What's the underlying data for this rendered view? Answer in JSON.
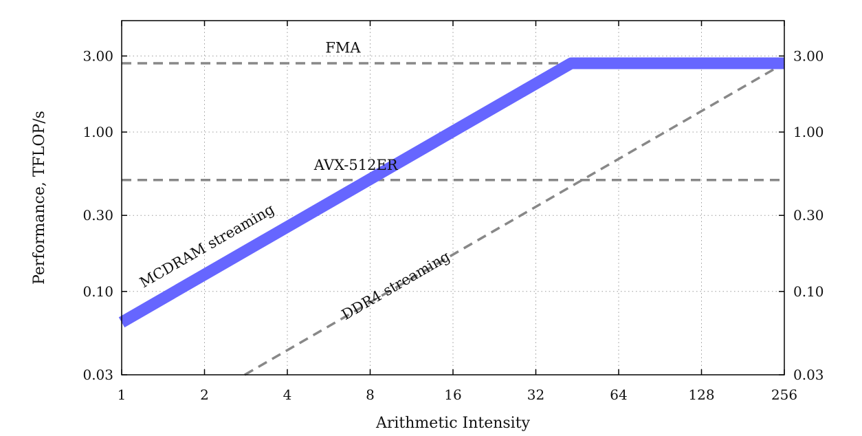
{
  "chart_data": {
    "type": "line",
    "xlabel": "Arithmetic Intensity",
    "ylabel": "Performance, TFLOP/s",
    "x_scale": "log2",
    "y_scale": "log",
    "xlim": [
      1,
      256
    ],
    "ylim": [
      0.03,
      5.0
    ],
    "x_ticks": [
      1,
      2,
      4,
      8,
      16,
      32,
      64,
      128,
      256
    ],
    "x_tick_labels": [
      "1",
      "2",
      "4",
      "8",
      "16",
      "32",
      "64",
      "128",
      "256"
    ],
    "y_ticks": [
      0.03,
      0.1,
      0.3,
      1.0,
      3.0
    ],
    "y_tick_labels": [
      "0.03",
      "0.10",
      "0.30",
      "1.00",
      "3.00"
    ],
    "grid": true,
    "mirror_y_axis_right": true,
    "colors": {
      "mcdram": "#6666ff",
      "dashed": "#888888"
    },
    "series": [
      {
        "name": "MCDRAM streaming",
        "style": "thick-solid",
        "x": [
          1,
          43,
          256
        ],
        "y": [
          0.064,
          2.7,
          2.7
        ]
      },
      {
        "name": "DDR4 streaming",
        "style": "dashed",
        "x": [
          2.8,
          256
        ],
        "y": [
          0.03,
          2.7
        ]
      },
      {
        "name": "FMA",
        "style": "dashed",
        "x": [
          1,
          256
        ],
        "y": [
          2.7,
          2.7
        ]
      },
      {
        "name": "AVX-512ER",
        "style": "dashed",
        "x": [
          1,
          256
        ],
        "y": [
          0.5,
          0.5
        ]
      }
    ],
    "annotations": [
      {
        "text": "FMA",
        "x": 5.5,
        "y": 3.15,
        "rotate": false
      },
      {
        "text": "AVX-512ER",
        "x": 5.0,
        "y": 0.58,
        "rotate": false
      },
      {
        "text": "MCDRAM streaming",
        "x": 1.2,
        "y": 0.105,
        "rotate": true
      },
      {
        "text": "DDR4 streaming",
        "x": 6.5,
        "y": 0.066,
        "rotate": true
      }
    ]
  }
}
